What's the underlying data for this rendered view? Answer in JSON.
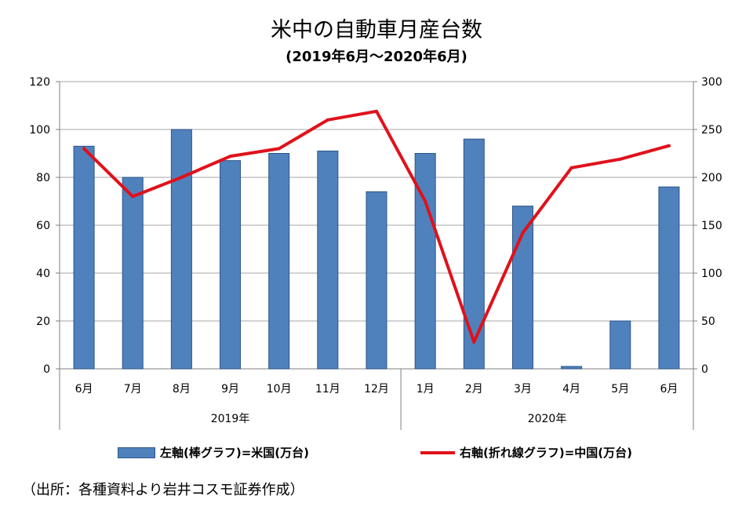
{
  "title": "米中の自動車月産台数",
  "subtitle": "(2019年6月～2020年6月)",
  "source": "（出所：各種資料より岩井コスモ証券作成）",
  "chart_data": {
    "type": "bar",
    "categories": [
      "6月",
      "7月",
      "8月",
      "9月",
      "10月",
      "11月",
      "12月",
      "1月",
      "2月",
      "3月",
      "4月",
      "5月",
      "6月"
    ],
    "year_groups": [
      {
        "label": "2019年",
        "start": 0,
        "end": 6
      },
      {
        "label": "2020年",
        "start": 7,
        "end": 12
      }
    ],
    "series": [
      {
        "name": "左軸(棒グラフ)=米国(万台)",
        "type": "bar",
        "axis": "left",
        "color": "#4f81bd",
        "values": [
          93,
          80,
          100,
          87,
          90,
          91,
          74,
          90,
          96,
          68,
          1,
          20,
          76
        ]
      },
      {
        "name": "右軸(折れ線グラフ)=中国(万台)",
        "type": "line",
        "axis": "right",
        "color": "#e0111b",
        "values": [
          230,
          180,
          200,
          222,
          230,
          260,
          269,
          175,
          28,
          142,
          210,
          219,
          233
        ]
      }
    ],
    "y_left": {
      "min": 0,
      "max": 120,
      "ticks": [
        0,
        20,
        40,
        60,
        80,
        100,
        120
      ]
    },
    "y_right": {
      "min": 0,
      "max": 300,
      "ticks": [
        0,
        50,
        100,
        150,
        200,
        250,
        300
      ]
    },
    "grid": true,
    "legend_position": "bottom"
  }
}
